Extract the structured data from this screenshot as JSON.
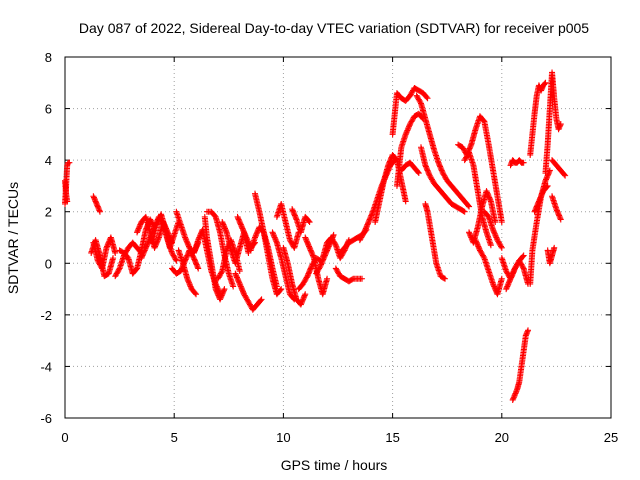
{
  "chart_data": {
    "type": "scatter",
    "title": "Day 087 of 2022, Sidereal Day-to-day VTEC variation (SDTVAR) for receiver p005",
    "xlabel": "GPS time / hours",
    "ylabel": "SDTVAR / TECUs",
    "xlim": [
      0,
      25
    ],
    "ylim": [
      -6,
      8
    ],
    "xticks": [
      0,
      5,
      10,
      15,
      20,
      25
    ],
    "xtick_labels": [
      "0",
      "5",
      "10",
      "15",
      "20",
      "25"
    ],
    "yticks": [
      -6,
      -4,
      -2,
      0,
      2,
      4,
      6,
      8
    ],
    "ytick_labels": [
      "-6",
      "-4",
      "-2",
      "0",
      "2",
      "4",
      "6",
      "8"
    ],
    "grid": true,
    "legend": "none",
    "marker": "plus",
    "color": "#ff0000",
    "series": [
      {
        "name": "s01",
        "x": [
          0.0,
          0.05,
          0.1,
          0.15,
          0.2
        ],
        "y": [
          2.3,
          3.0,
          3.8,
          3.9,
          3.9
        ]
      },
      {
        "name": "s02",
        "x": [
          0.0,
          0.05,
          0.1
        ],
        "y": [
          3.2,
          2.7,
          2.4
        ]
      },
      {
        "name": "s03",
        "x": [
          1.3,
          1.4,
          1.5,
          1.6
        ],
        "y": [
          2.6,
          2.4,
          2.2,
          2.0
        ]
      },
      {
        "name": "s04",
        "x": [
          1.2,
          1.4,
          1.6,
          1.8,
          2.0,
          2.2
        ],
        "y": [
          0.4,
          0.9,
          0.3,
          -0.5,
          -0.4,
          0.2
        ]
      },
      {
        "name": "s05",
        "x": [
          1.3,
          1.5,
          1.7,
          1.9,
          2.1,
          2.3
        ],
        "y": [
          0.8,
          0.1,
          -0.2,
          0.6,
          1.0,
          0.4
        ]
      },
      {
        "name": "s06",
        "x": [
          2.3,
          2.5,
          2.7,
          2.9,
          3.1,
          3.3,
          3.5
        ],
        "y": [
          -0.5,
          -0.2,
          0.3,
          0.6,
          0.8,
          0.6,
          0.4
        ]
      },
      {
        "name": "s07",
        "x": [
          2.5,
          2.7,
          2.9,
          3.1,
          3.3,
          3.5,
          3.7,
          3.9,
          4.1
        ],
        "y": [
          0.5,
          0.4,
          0.2,
          -0.4,
          -0.2,
          0.5,
          1.3,
          1.7,
          1.4
        ]
      },
      {
        "name": "s08",
        "x": [
          3.3,
          3.5,
          3.7,
          3.9,
          4.1,
          4.3,
          4.5,
          4.7,
          4.9
        ],
        "y": [
          1.2,
          1.6,
          1.8,
          1.2,
          0.6,
          1.0,
          1.6,
          1.2,
          0.8
        ]
      },
      {
        "name": "s09",
        "x": [
          3.5,
          3.7,
          3.9,
          4.1,
          4.3,
          4.5,
          4.7,
          4.9,
          5.1
        ],
        "y": [
          0.2,
          0.6,
          1.0,
          1.4,
          1.8,
          1.5,
          0.9,
          0.4,
          0.1
        ]
      },
      {
        "name": "s10",
        "x": [
          4.0,
          4.2,
          4.4,
          4.6,
          4.8,
          5.0,
          5.2
        ],
        "y": [
          0.8,
          1.5,
          1.9,
          1.3,
          0.6,
          1.1,
          1.6
        ]
      },
      {
        "name": "s11",
        "x": [
          4.9,
          5.1,
          5.3,
          5.5,
          5.7,
          5.9,
          6.1
        ],
        "y": [
          -0.2,
          -0.4,
          -0.3,
          0.1,
          0.5,
          0.2,
          -0.2
        ]
      },
      {
        "name": "s12",
        "x": [
          5.1,
          5.3,
          5.5,
          5.7,
          5.9,
          6.1
        ],
        "y": [
          2.0,
          1.5,
          1.0,
          0.6,
          0.4,
          0.8
        ]
      },
      {
        "name": "s13",
        "x": [
          5.2,
          5.4,
          5.6,
          5.8,
          6.0
        ],
        "y": [
          0.5,
          0.0,
          -0.6,
          -1.0,
          -1.2
        ]
      },
      {
        "name": "s14",
        "x": [
          5.9,
          6.1,
          6.3,
          6.5,
          6.7,
          6.9,
          7.1
        ],
        "y": [
          0.4,
          0.9,
          1.3,
          0.5,
          -0.3,
          -0.8,
          -1.2
        ]
      },
      {
        "name": "s15",
        "x": [
          6.4,
          6.5,
          6.7,
          6.9,
          7.1,
          7.3
        ],
        "y": [
          1.8,
          1.0,
          0.0,
          -1.0,
          -1.4,
          -1.0
        ]
      },
      {
        "name": "s16",
        "x": [
          6.5,
          6.7,
          6.9,
          7.1,
          7.3,
          7.5,
          7.7
        ],
        "y": [
          2.0,
          2.0,
          1.8,
          1.2,
          0.3,
          -0.4,
          -0.9
        ]
      },
      {
        "name": "s17",
        "x": [
          7.0,
          7.2,
          7.4,
          7.6,
          7.8,
          8.0
        ],
        "y": [
          -0.6,
          -0.3,
          0.5,
          0.9,
          0.4,
          -0.3
        ]
      },
      {
        "name": "s18",
        "x": [
          7.2,
          7.4,
          7.6,
          7.8,
          8.0,
          8.2,
          8.4
        ],
        "y": [
          1.6,
          1.2,
          0.5,
          0.0,
          0.6,
          1.2,
          0.4
        ]
      },
      {
        "name": "s19",
        "x": [
          7.8,
          8.0,
          8.2,
          8.4,
          8.6,
          8.8,
          9.0
        ],
        "y": [
          -0.4,
          -0.8,
          -1.2,
          -1.5,
          -1.8,
          -1.6,
          -1.4
        ]
      },
      {
        "name": "s20",
        "x": [
          7.9,
          8.1,
          8.3,
          8.5,
          8.7
        ],
        "y": [
          1.8,
          1.4,
          1.0,
          0.6,
          0.8
        ]
      },
      {
        "name": "s21",
        "x": [
          8.5,
          8.7,
          8.9,
          9.1,
          9.3,
          9.5,
          9.7
        ],
        "y": [
          0.5,
          1.0,
          1.4,
          1.2,
          0.6,
          -0.2,
          -0.9
        ]
      },
      {
        "name": "s22",
        "x": [
          8.7,
          8.9,
          9.1,
          9.3,
          9.5,
          9.7,
          9.9
        ],
        "y": [
          2.7,
          2.0,
          1.2,
          0.3,
          -0.6,
          -1.2,
          -1.0
        ]
      },
      {
        "name": "s23",
        "x": [
          9.5,
          9.7,
          9.9,
          10.1,
          10.3,
          10.5
        ],
        "y": [
          1.2,
          0.8,
          0.2,
          -0.5,
          -1.2,
          -1.4
        ]
      },
      {
        "name": "s24",
        "x": [
          9.7,
          9.9,
          10.1,
          10.3,
          10.5,
          10.7
        ],
        "y": [
          1.8,
          2.3,
          1.6,
          0.9,
          0.6,
          1.2
        ]
      },
      {
        "name": "s25",
        "x": [
          10.0,
          10.2,
          10.4,
          10.6,
          10.8,
          11.0
        ],
        "y": [
          0.6,
          0.0,
          -0.8,
          -1.4,
          -1.6,
          -1.2
        ]
      },
      {
        "name": "s26",
        "x": [
          10.4,
          10.6,
          10.8,
          11.0,
          11.2
        ],
        "y": [
          2.1,
          1.7,
          1.2,
          1.8,
          1.6
        ]
      },
      {
        "name": "s27",
        "x": [
          10.7,
          10.9,
          11.1,
          11.3,
          11.5,
          11.7
        ],
        "y": [
          -1.0,
          -0.8,
          -0.5,
          -0.1,
          0.2,
          0.1
        ]
      },
      {
        "name": "s28",
        "x": [
          11.0,
          11.2,
          11.4,
          11.6,
          11.8,
          12.0
        ],
        "y": [
          1.0,
          0.6,
          0.2,
          -0.6,
          -1.2,
          -0.6
        ]
      },
      {
        "name": "s29",
        "x": [
          11.5,
          11.7,
          11.9,
          12.1,
          12.3
        ],
        "y": [
          -0.4,
          -0.1,
          0.3,
          0.7,
          1.1
        ]
      },
      {
        "name": "s30",
        "x": [
          11.8,
          12.0,
          12.2,
          12.4,
          12.6,
          12.8,
          13.0
        ],
        "y": [
          0.2,
          0.8,
          1.0,
          0.7,
          0.2,
          0.5,
          0.9
        ]
      },
      {
        "name": "s31",
        "x": [
          12.4,
          12.6,
          12.8,
          13.0,
          13.2,
          13.4,
          13.6
        ],
        "y": [
          -0.2,
          -0.5,
          -0.6,
          -0.7,
          -0.6,
          -0.6,
          -0.6
        ]
      },
      {
        "name": "s32",
        "x": [
          12.6,
          12.8,
          13.0,
          13.2,
          13.4,
          13.6,
          13.8
        ],
        "y": [
          0.4,
          0.6,
          0.8,
          0.9,
          1.0,
          1.1,
          1.3
        ]
      },
      {
        "name": "s33",
        "x": [
          13.5,
          13.7,
          13.9,
          14.1,
          14.3,
          14.5,
          14.7,
          14.9,
          15.1
        ],
        "y": [
          0.9,
          1.2,
          1.6,
          2.0,
          2.5,
          3.0,
          3.4,
          3.8,
          4.0
        ]
      },
      {
        "name": "s34",
        "x": [
          14.2,
          14.4,
          14.6,
          14.8,
          15.0,
          15.2,
          15.4,
          15.6
        ],
        "y": [
          1.6,
          2.4,
          3.2,
          3.8,
          4.2,
          4.0,
          3.2,
          2.4
        ]
      },
      {
        "name": "s35",
        "x": [
          15.0,
          15.2,
          15.4,
          15.6,
          15.8,
          16.0,
          16.2,
          16.4,
          16.6
        ],
        "y": [
          5.0,
          6.6,
          6.4,
          6.3,
          6.5,
          6.8,
          6.7,
          6.6,
          6.4
        ]
      },
      {
        "name": "s36",
        "x": [
          15.2,
          15.4,
          15.6,
          15.8,
          16.0,
          16.2,
          16.4
        ],
        "y": [
          3.0,
          4.5,
          5.0,
          5.4,
          5.7,
          5.8,
          5.6
        ]
      },
      {
        "name": "s37",
        "x": [
          15.4,
          15.6,
          15.8,
          16.0,
          16.2
        ],
        "y": [
          3.6,
          3.8,
          3.9,
          3.7,
          3.5
        ]
      },
      {
        "name": "s38",
        "x": [
          16.1,
          16.3,
          16.5,
          16.7,
          16.9,
          17.1,
          17.3,
          17.5,
          17.7,
          17.9,
          18.1,
          18.3,
          18.5
        ],
        "y": [
          6.5,
          6.2,
          5.6,
          5.0,
          4.4,
          3.9,
          3.5,
          3.2,
          3.0,
          2.8,
          2.6,
          2.4,
          2.2
        ]
      },
      {
        "name": "s39",
        "x": [
          16.3,
          16.5,
          16.7,
          16.9,
          17.1,
          17.3,
          17.5,
          17.7,
          17.9,
          18.1,
          18.3
        ],
        "y": [
          4.5,
          3.8,
          3.4,
          3.1,
          2.9,
          2.7,
          2.5,
          2.3,
          2.2,
          2.1,
          2.0
        ]
      },
      {
        "name": "s40",
        "x": [
          16.5,
          16.6,
          16.8,
          17.0,
          17.2,
          17.4
        ],
        "y": [
          2.3,
          2.0,
          1.0,
          0.0,
          -0.5,
          -0.6
        ]
      },
      {
        "name": "s41",
        "x": [
          18.0,
          18.2,
          18.4,
          18.6,
          18.8,
          19.0,
          19.2,
          19.4,
          19.6,
          19.8,
          20.0
        ],
        "y": [
          4.6,
          4.5,
          4.2,
          4.6,
          5.2,
          5.7,
          5.5,
          4.6,
          3.6,
          2.6,
          1.6
        ]
      },
      {
        "name": "s42",
        "x": [
          18.3,
          18.5,
          18.7,
          18.9,
          19.1,
          19.3,
          19.5
        ],
        "y": [
          4.0,
          4.3,
          3.8,
          2.8,
          1.8,
          1.2,
          0.7
        ]
      },
      {
        "name": "s43",
        "x": [
          18.5,
          18.7,
          18.9,
          19.1,
          19.3,
          19.5,
          19.7
        ],
        "y": [
          1.2,
          0.8,
          1.4,
          2.2,
          2.8,
          2.4,
          1.6
        ]
      },
      {
        "name": "s44",
        "x": [
          18.8,
          19.0,
          19.2,
          19.4,
          19.6,
          19.8,
          20.0
        ],
        "y": [
          0.9,
          0.5,
          0.2,
          -0.3,
          -0.8,
          -1.2,
          -0.6
        ]
      },
      {
        "name": "s45",
        "x": [
          19.2,
          19.4,
          19.6,
          19.8,
          20.0
        ],
        "y": [
          2.0,
          1.8,
          1.3,
          0.9,
          0.6
        ]
      },
      {
        "name": "s46",
        "x": [
          20.0,
          20.2,
          20.4,
          20.6,
          20.8,
          21.0,
          21.2
        ],
        "y": [
          0.2,
          -0.3,
          -0.6,
          -0.2,
          0.1,
          -0.2,
          -0.8
        ]
      },
      {
        "name": "s47",
        "x": [
          20.2,
          20.4,
          20.6,
          20.8,
          21.0
        ],
        "y": [
          -1.0,
          -0.6,
          -0.2,
          0.1,
          0.3
        ]
      },
      {
        "name": "s48",
        "x": [
          20.4,
          20.5,
          20.6,
          20.7,
          20.8,
          20.9,
          21.0
        ],
        "y": [
          3.8,
          4.0,
          3.9,
          3.9,
          4.0,
          3.9,
          3.9
        ]
      },
      {
        "name": "s49",
        "x": [
          20.5,
          20.6,
          20.7,
          20.8,
          20.9,
          21.0,
          21.1,
          21.2
        ],
        "y": [
          -5.3,
          -5.1,
          -4.9,
          -4.6,
          -4.0,
          -3.4,
          -2.8,
          -2.6
        ]
      },
      {
        "name": "s50",
        "x": [
          21.3,
          21.4,
          21.5,
          21.6,
          21.7,
          21.8,
          21.9,
          22.0
        ],
        "y": [
          4.2,
          5.0,
          5.8,
          6.5,
          6.9,
          6.7,
          6.9,
          7.0
        ]
      },
      {
        "name": "s51",
        "x": [
          21.3,
          21.4,
          21.6,
          21.8,
          22.0,
          22.2
        ],
        "y": [
          -0.8,
          0.5,
          1.6,
          2.6,
          3.2,
          3.6
        ]
      },
      {
        "name": "s52",
        "x": [
          21.5,
          21.7,
          21.9,
          22.1
        ],
        "y": [
          2.0,
          2.4,
          2.8,
          3.0
        ]
      },
      {
        "name": "s53",
        "x": [
          22.0,
          22.1,
          22.2,
          22.3,
          22.4,
          22.5,
          22.6,
          22.7
        ],
        "y": [
          3.5,
          4.6,
          6.0,
          7.4,
          6.4,
          5.6,
          5.2,
          5.4
        ]
      },
      {
        "name": "s54",
        "x": [
          22.1,
          22.2,
          22.3,
          22.4
        ],
        "y": [
          0.5,
          0.0,
          0.3,
          0.6
        ]
      },
      {
        "name": "s55",
        "x": [
          22.3,
          22.5,
          22.7,
          22.9
        ],
        "y": [
          4.0,
          3.8,
          3.6,
          3.4
        ]
      },
      {
        "name": "s56",
        "x": [
          22.3,
          22.5,
          22.7
        ],
        "y": [
          2.6,
          2.1,
          1.7
        ]
      }
    ]
  }
}
